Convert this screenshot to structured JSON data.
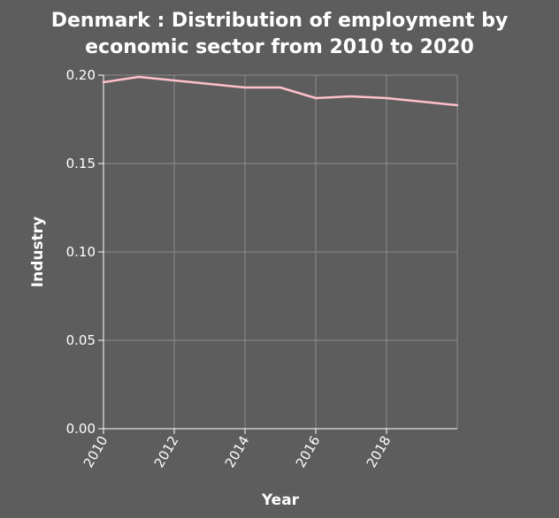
{
  "chart_data": {
    "type": "line",
    "title": "Denmark : Distribution of employment by economic sector from 2010 to 2020",
    "title_lines": [
      "Denmark : Distribution of employment by",
      "economic sector from 2010 to 2020"
    ],
    "xlabel": "Year",
    "ylabel": "Industry",
    "xlim": [
      2010,
      2020
    ],
    "ylim": [
      0,
      0.2
    ],
    "x_ticks": [
      2010,
      2012,
      2014,
      2016,
      2018
    ],
    "x_tick_labels": [
      "2010",
      "2012",
      "2014",
      "2016",
      "2018"
    ],
    "y_ticks": [
      0,
      0.05,
      0.1,
      0.15,
      0.2
    ],
    "y_tick_labels": [
      "0.00",
      "0.05",
      "0.10",
      "0.15",
      "0.20"
    ],
    "grid": true,
    "series": [
      {
        "x": [
          2010,
          2011,
          2012,
          2013,
          2014,
          2015,
          2016,
          2017,
          2018,
          2019,
          2020
        ],
        "values": [
          0.196,
          0.199,
          0.197,
          0.195,
          0.193,
          0.193,
          0.187,
          0.188,
          0.187,
          0.185,
          0.183
        ],
        "color": "#ffc0cb"
      }
    ],
    "colors": {
      "background": "#5d5d5d",
      "grid": "#8c8c8c",
      "axis": "#ffffff",
      "line": "#ffc0cb",
      "text": "#ffffff"
    }
  }
}
